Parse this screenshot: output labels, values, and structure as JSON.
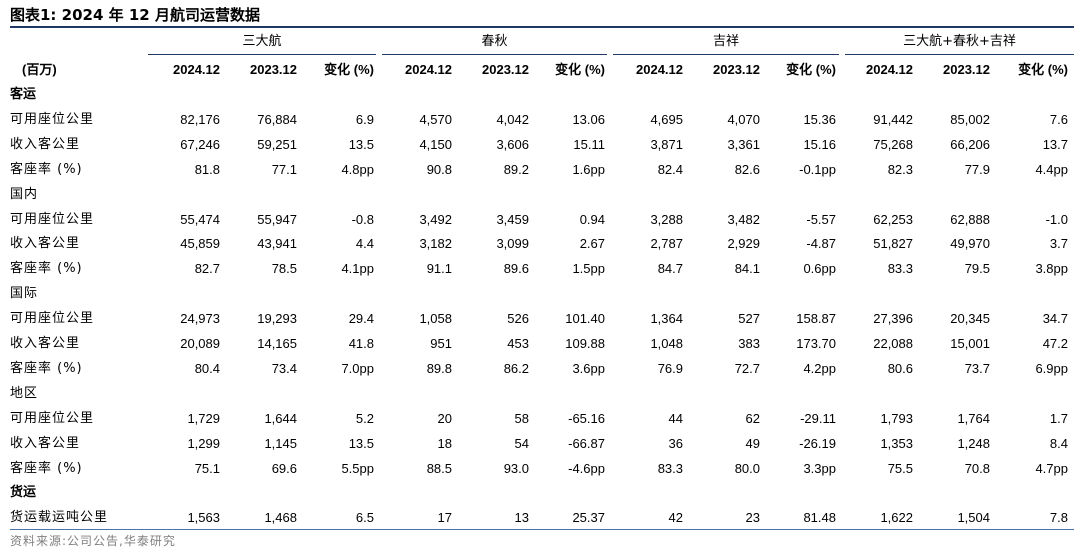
{
  "title": "图表1:  2024 年 12 月航司运营数据",
  "unit_label": "(百万)",
  "groups": [
    "三大航",
    "春秋",
    "吉祥",
    "三大航+春秋+吉祥"
  ],
  "columns": [
    "2024.12",
    "2023.12",
    "变化 (%)"
  ],
  "sections": [
    {
      "name": "客运",
      "bold": true,
      "rows": [
        {
          "label": "可用座位公里",
          "values": [
            "82,176",
            "76,884",
            "6.9",
            "4,570",
            "4,042",
            "13.06",
            "4,695",
            "4,070",
            "15.36",
            "91,442",
            "85,002",
            "7.6"
          ]
        },
        {
          "label": "收入客公里",
          "values": [
            "67,246",
            "59,251",
            "13.5",
            "4,150",
            "3,606",
            "15.11",
            "3,871",
            "3,361",
            "15.16",
            "75,268",
            "66,206",
            "13.7"
          ]
        },
        {
          "label": "客座率 (%)",
          "values": [
            "81.8",
            "77.1",
            "4.8pp",
            "90.8",
            "89.2",
            "1.6pp",
            "82.4",
            "82.6",
            "-0.1pp",
            "82.3",
            "77.9",
            "4.4pp"
          ]
        }
      ]
    },
    {
      "name": "国内",
      "bold": false,
      "rows": [
        {
          "label": "可用座位公里",
          "values": [
            "55,474",
            "55,947",
            "-0.8",
            "3,492",
            "3,459",
            "0.94",
            "3,288",
            "3,482",
            "-5.57",
            "62,253",
            "62,888",
            "-1.0"
          ]
        },
        {
          "label": "收入客公里",
          "values": [
            "45,859",
            "43,941",
            "4.4",
            "3,182",
            "3,099",
            "2.67",
            "2,787",
            "2,929",
            "-4.87",
            "51,827",
            "49,970",
            "3.7"
          ]
        },
        {
          "label": "客座率 (%)",
          "values": [
            "82.7",
            "78.5",
            "4.1pp",
            "91.1",
            "89.6",
            "1.5pp",
            "84.7",
            "84.1",
            "0.6pp",
            "83.3",
            "79.5",
            "3.8pp"
          ]
        }
      ]
    },
    {
      "name": "国际",
      "bold": false,
      "rows": [
        {
          "label": "可用座位公里",
          "values": [
            "24,973",
            "19,293",
            "29.4",
            "1,058",
            "526",
            "101.40",
            "1,364",
            "527",
            "158.87",
            "27,396",
            "20,345",
            "34.7"
          ]
        },
        {
          "label": "收入客公里",
          "values": [
            "20,089",
            "14,165",
            "41.8",
            "951",
            "453",
            "109.88",
            "1,048",
            "383",
            "173.70",
            "22,088",
            "15,001",
            "47.2"
          ]
        },
        {
          "label": "客座率 (%)",
          "values": [
            "80.4",
            "73.4",
            "7.0pp",
            "89.8",
            "86.2",
            "3.6pp",
            "76.9",
            "72.7",
            "4.2pp",
            "80.6",
            "73.7",
            "6.9pp"
          ]
        }
      ]
    },
    {
      "name": "地区",
      "bold": false,
      "rows": [
        {
          "label": "可用座位公里",
          "values": [
            "1,729",
            "1,644",
            "5.2",
            "20",
            "58",
            "-65.16",
            "44",
            "62",
            "-29.11",
            "1,793",
            "1,764",
            "1.7"
          ]
        },
        {
          "label": "收入客公里",
          "values": [
            "1,299",
            "1,145",
            "13.5",
            "18",
            "54",
            "-66.87",
            "36",
            "49",
            "-26.19",
            "1,353",
            "1,248",
            "8.4"
          ]
        },
        {
          "label": "客座率 (%)",
          "values": [
            "75.1",
            "69.6",
            "5.5pp",
            "88.5",
            "93.0",
            "-4.6pp",
            "83.3",
            "80.0",
            "3.3pp",
            "75.5",
            "70.8",
            "4.7pp"
          ]
        }
      ]
    },
    {
      "name": "货运",
      "bold": true,
      "rows": [
        {
          "label": "货运载运吨公里",
          "values": [
            "1,563",
            "1,468",
            "6.5",
            "17",
            "13",
            "25.37",
            "42",
            "23",
            "81.48",
            "1,622",
            "1,504",
            "7.8"
          ]
        }
      ]
    }
  ],
  "source": "资料来源:公司公告,华泰研究"
}
